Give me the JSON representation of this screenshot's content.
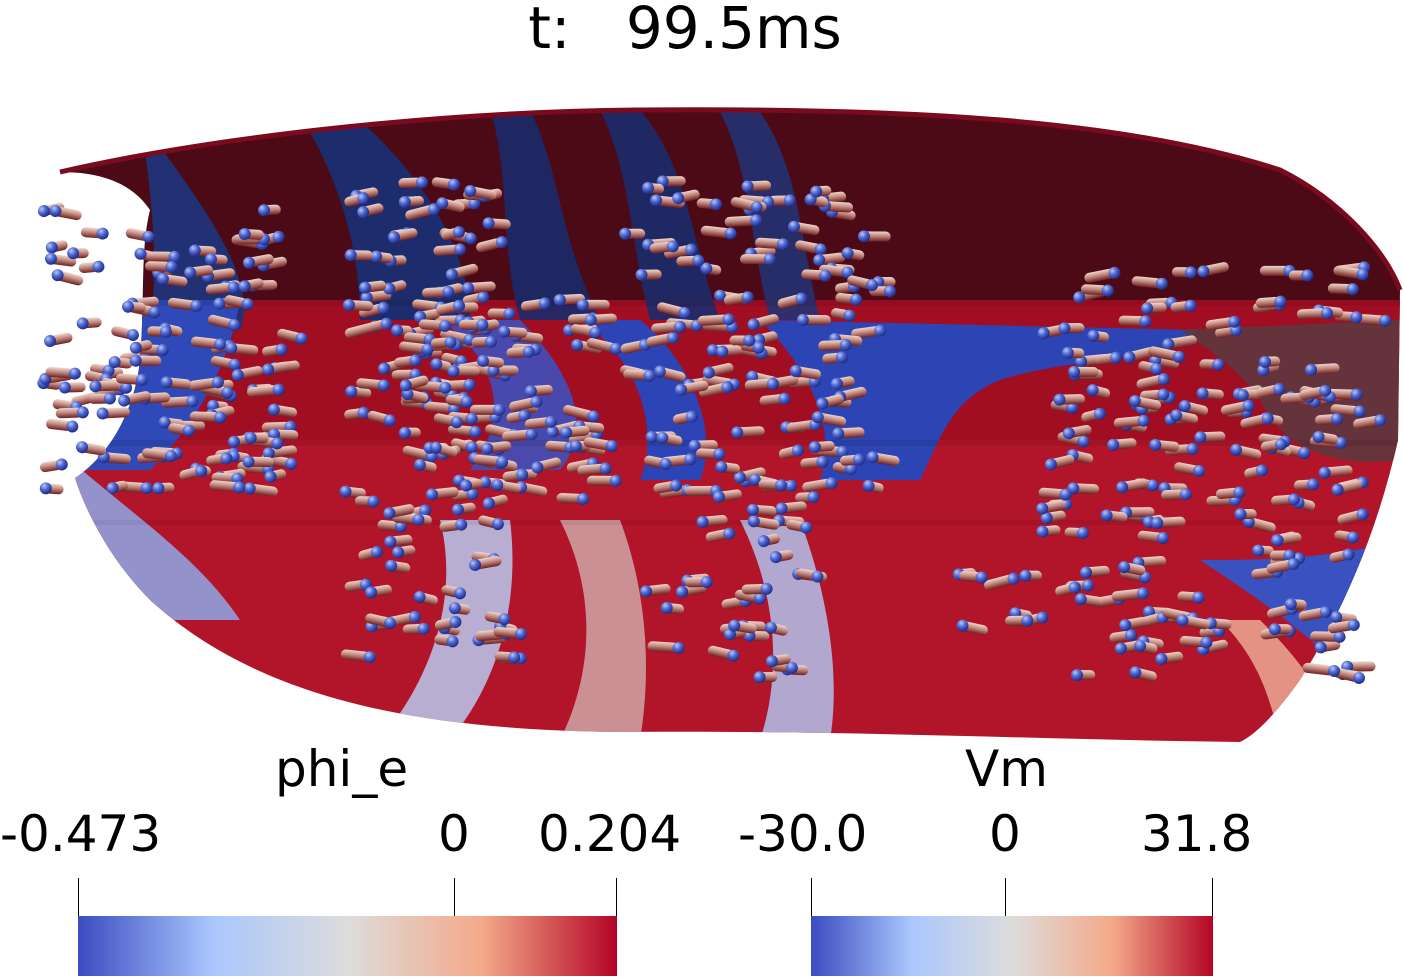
{
  "header": {
    "time_label": "t:",
    "time_value": "99.5ms"
  },
  "colorbars": [
    {
      "title": "phi_e",
      "range": [
        -0.473,
        0.204
      ],
      "ticks": [
        "-0.473",
        "0",
        "0.204"
      ],
      "colors": [
        "#3b4cc0",
        "#aac7fd",
        "#dddcdc",
        "#f4a989",
        "#b40426"
      ]
    },
    {
      "title": "Vm",
      "range": [
        -30.0,
        31.8
      ],
      "ticks": [
        "-30.0",
        "0",
        "31.8"
      ],
      "colors": [
        "#3b4cc0",
        "#aac7fd",
        "#dddcdc",
        "#f4a989",
        "#b40426"
      ]
    }
  ]
}
